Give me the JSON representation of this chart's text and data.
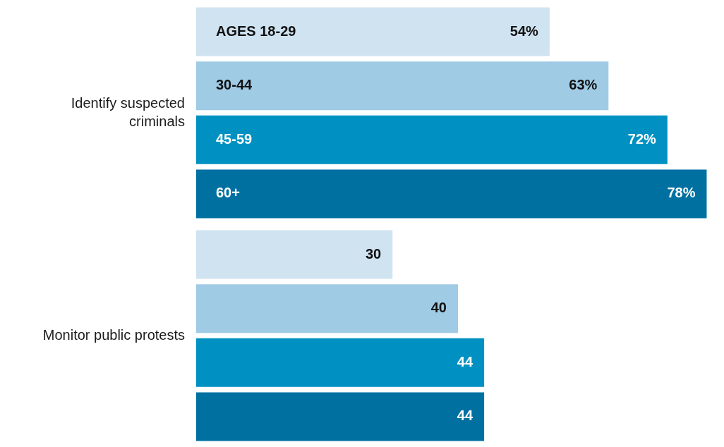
{
  "chart_data": {
    "type": "bar",
    "orientation": "horizontal",
    "tick_labels": "y",
    "categories": [
      "Identify suspected criminals",
      "Monitor public protests"
    ],
    "series": [
      {
        "name": "AGES 18-29",
        "color": "#cfe3f1",
        "values": [
          54,
          30
        ],
        "value_labels": [
          "54%",
          "30"
        ]
      },
      {
        "name": "30-44",
        "color": "#9fcbe5",
        "values": [
          63,
          40
        ],
        "value_labels": [
          "63%",
          "40"
        ]
      },
      {
        "name": "45-59",
        "color": "#0091c2",
        "values": [
          72,
          44
        ],
        "value_labels": [
          "72%",
          "44"
        ]
      },
      {
        "name": "60+",
        "color": "#0070a1",
        "values": [
          78,
          44
        ],
        "value_labels": [
          "78%",
          "44"
        ]
      }
    ]
  }
}
